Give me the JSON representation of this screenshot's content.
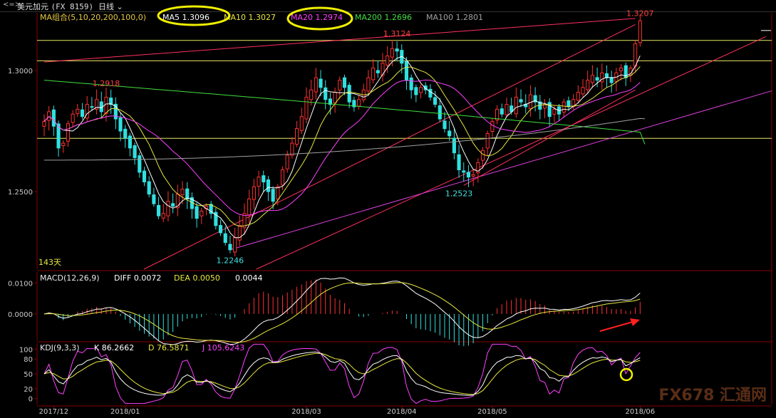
{
  "titlebar": {
    "icon": "<=>",
    "symbol": "美元加元",
    "code": "(FX 8159)",
    "period": "日线",
    "period_icon": "chevron-down-icon"
  },
  "price_panel": {
    "legend": [
      {
        "label": "MA组合(5,10,20,200,100,0)",
        "color": "#e8c840"
      },
      {
        "label": "MA5 1.3096",
        "color": "#ffffff"
      },
      {
        "label": "MA10 1.3027",
        "color": "#e8e840"
      },
      {
        "label": "MA20 1.2974",
        "color": "#ff40ff"
      },
      {
        "label": "MA200 1.2696",
        "color": "#40e040"
      },
      {
        "label": "MA100 1.2801",
        "color": "#a0a0a0"
      }
    ],
    "y_ticks": [
      {
        "label": "1.3000",
        "value": 1.3
      },
      {
        "label": "1.2500",
        "value": 1.25
      }
    ],
    "annotations": [
      {
        "label": "1.2918",
        "value": 1.2918,
        "index": 13,
        "color": "#ff4040"
      },
      {
        "label": "1.3124",
        "value": 1.3124,
        "index": 74,
        "color": "#ff4040"
      },
      {
        "label": "1.3207",
        "value": 1.3207,
        "index": 125,
        "color": "#ff4040"
      },
      {
        "label": "1.2246",
        "value": 1.2246,
        "index": 39,
        "color": "#40e0e0"
      },
      {
        "label": "1.2523",
        "value": 1.2523,
        "index": 87,
        "color": "#40e0e0"
      }
    ],
    "days_label": "143天",
    "hlines": [
      1.3124,
      1.304,
      1.272
    ],
    "ylim": [
      1.218,
      1.3238
    ]
  },
  "macd_panel": {
    "legend": [
      {
        "label": "MACD(12,26,9)",
        "color": "#e8e8e8"
      },
      {
        "label": "DIFF 0.0072",
        "color": "#ffffff"
      },
      {
        "label": "DEA 0.0050",
        "color": "#e8e840"
      },
      {
        "label": "0.0044",
        "color": "#ffffff"
      }
    ],
    "y_ticks": [
      {
        "label": "0.0100",
        "value": 0.01
      },
      {
        "label": "0.0000",
        "value": 0.0
      }
    ]
  },
  "kdj_panel": {
    "legend": [
      {
        "label": "KDJ(9,3,3)",
        "color": "#e8e8e8"
      },
      {
        "label": "K 86.2662",
        "color": "#ffffff"
      },
      {
        "label": "D 76.5871",
        "color": "#e8e840"
      },
      {
        "label": "J 105.6243",
        "color": "#ff40ff"
      }
    ],
    "y_ticks": [
      {
        "label": "100",
        "value": 100
      },
      {
        "label": "80",
        "value": 80
      },
      {
        "label": "50",
        "value": 50
      },
      {
        "label": "20",
        "value": 20
      },
      {
        "label": "0",
        "value": 0
      }
    ]
  },
  "x_axis": [
    {
      "label": "2017/12",
      "index": 2
    },
    {
      "label": "2018/01",
      "index": 17
    },
    {
      "label": "2018/03",
      "index": 55
    },
    {
      "label": "2018/04",
      "index": 75
    },
    {
      "label": "2018/05",
      "index": 94
    },
    {
      "label": "2018/06",
      "index": 125
    }
  ],
  "watermark": "FX678 汇通网",
  "chart_data": [
    {
      "type": "candlestick",
      "title": "美元加元 日线",
      "ylim": [
        1.218,
        1.3238
      ],
      "moving_averages": {
        "MA5": 1.3096,
        "MA10": 1.3027,
        "MA20": 1.2974,
        "MA200": 1.2696,
        "MA100": 1.2801
      },
      "close": [
        1.279,
        1.283,
        1.277,
        1.268,
        1.27,
        1.278,
        1.282,
        1.284,
        1.281,
        1.286,
        1.285,
        1.288,
        1.283,
        1.289,
        1.286,
        1.28,
        1.275,
        1.272,
        1.268,
        1.264,
        1.258,
        1.254,
        1.249,
        1.245,
        1.24,
        1.241,
        1.246,
        1.244,
        1.249,
        1.251,
        1.247,
        1.243,
        1.239,
        1.242,
        1.244,
        1.241,
        1.236,
        1.233,
        1.229,
        1.226,
        1.231,
        1.236,
        1.241,
        1.247,
        1.252,
        1.256,
        1.254,
        1.25,
        1.246,
        1.252,
        1.259,
        1.265,
        1.27,
        1.276,
        1.281,
        1.289,
        1.292,
        1.297,
        1.293,
        1.288,
        1.286,
        1.291,
        1.296,
        1.293,
        1.287,
        1.285,
        1.288,
        1.292,
        1.297,
        1.301,
        1.299,
        1.303,
        1.306,
        1.309,
        1.308,
        1.303,
        1.296,
        1.292,
        1.29,
        1.293,
        1.292,
        1.289,
        1.286,
        1.28,
        1.276,
        1.273,
        1.266,
        1.259,
        1.258,
        1.256,
        1.257,
        1.262,
        1.267,
        1.274,
        1.279,
        1.284,
        1.282,
        1.286,
        1.283,
        1.289,
        1.287,
        1.285,
        1.29,
        1.287,
        1.284,
        1.286,
        1.281,
        1.284,
        1.282,
        1.287,
        1.285,
        1.288,
        1.291,
        1.293,
        1.296,
        1.298,
        1.296,
        1.299,
        1.297,
        1.295,
        1.299,
        1.301,
        1.297,
        1.301,
        1.311,
        1.3205
      ],
      "macd": {
        "DIFF": 0.0072,
        "DEA": 0.005,
        "MACD": 0.0044
      },
      "kdj": {
        "K": 86.2662,
        "D": 76.5871,
        "J": 105.6243
      },
      "x_labels": [
        "2017/12",
        "2018/01",
        "2018/03",
        "2018/04",
        "2018/05",
        "2018/06"
      ]
    }
  ]
}
